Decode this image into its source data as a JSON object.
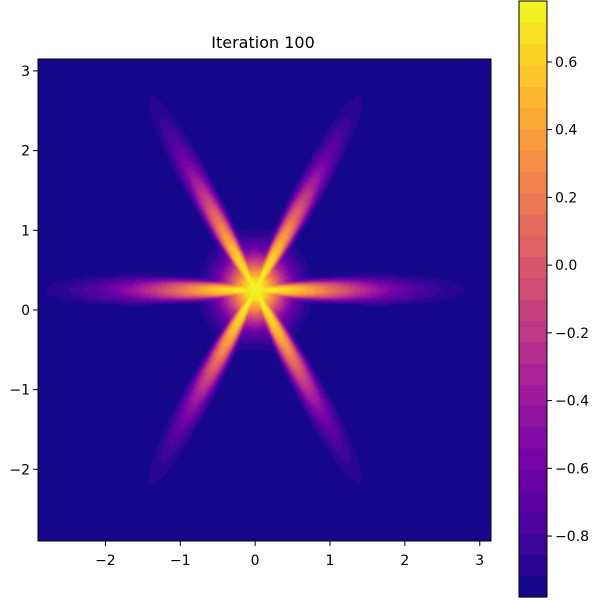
{
  "chart_data": {
    "type": "heatmap",
    "subtype": "filled-contour",
    "title": "Iteration 100",
    "xlabel": "",
    "ylabel": "",
    "xlim": [
      -2.9,
      3.15
    ],
    "ylim": [
      -2.9,
      3.15
    ],
    "x_ticks": [
      -2,
      -1,
      0,
      1,
      2,
      3
    ],
    "y_ticks": [
      -2,
      -1,
      0,
      1,
      2,
      3
    ],
    "x_tick_labels": [
      "−2",
      "−1",
      "0",
      "1",
      "2",
      "3"
    ],
    "y_tick_labels": [
      "−2",
      "−1",
      "0",
      "1",
      "2",
      "3"
    ],
    "shape": "six-petal star",
    "petals": 6,
    "peak_location": [
      0,
      0.25
    ],
    "value_range": [
      -0.98,
      0.78
    ],
    "contour_levels": 28,
    "colormap": "plasma",
    "colormap_stops": [
      "#0d0887",
      "#46039f",
      "#7201a8",
      "#9c179e",
      "#bd3786",
      "#d8576b",
      "#ed7953",
      "#fb9f3a",
      "#fdca26",
      "#f0f921"
    ],
    "colorbar": {
      "range": [
        -0.98,
        0.78
      ],
      "ticks": [
        -0.8,
        -0.6,
        -0.4,
        -0.2,
        0.0,
        0.2,
        0.4,
        0.6
      ],
      "tick_labels": [
        "−0.8",
        "−0.6",
        "−0.4",
        "−0.2",
        "0.0",
        "0.2",
        "0.4",
        "0.6"
      ],
      "orientation": "vertical",
      "location": "right"
    },
    "grid": false
  }
}
